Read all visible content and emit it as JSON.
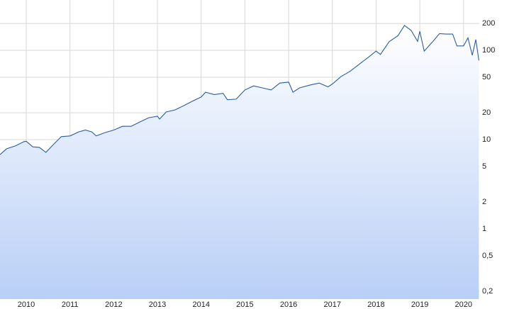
{
  "chart_data": {
    "type": "area",
    "x": [
      2009.4,
      2009.55,
      2009.75,
      2009.95,
      2010.0,
      2010.15,
      2010.3,
      2010.45,
      2010.6,
      2010.8,
      2011.0,
      2011.2,
      2011.35,
      2011.5,
      2011.6,
      2011.8,
      2012.0,
      2012.2,
      2012.4,
      2012.6,
      2012.8,
      2013.0,
      2013.05,
      2013.2,
      2013.4,
      2013.6,
      2013.8,
      2014.0,
      2014.1,
      2014.3,
      2014.5,
      2014.6,
      2014.8,
      2015.0,
      2015.2,
      2015.4,
      2015.6,
      2015.8,
      2016.0,
      2016.1,
      2016.25,
      2016.5,
      2016.7,
      2016.9,
      2017.0,
      2017.2,
      2017.4,
      2017.6,
      2017.8,
      2018.0,
      2018.1,
      2018.3,
      2018.5,
      2018.65,
      2018.8,
      2018.95,
      2019.0,
      2019.1,
      2019.3,
      2019.45,
      2019.6,
      2019.75,
      2019.85,
      2020.0,
      2020.1,
      2020.2,
      2020.28,
      2020.35
    ],
    "series": [
      {
        "color": "#2a5d9f",
        "fill": "#b9cff6",
        "values": [
          6.8,
          7.9,
          8.5,
          9.5,
          9.6,
          8.3,
          8.2,
          7.2,
          8.6,
          10.8,
          11.0,
          12.2,
          12.8,
          12.2,
          11.0,
          12.0,
          12.8,
          14.1,
          14.1,
          15.8,
          17.6,
          18.3,
          17.0,
          20.4,
          21.5,
          24,
          27,
          30,
          34,
          32,
          33,
          28,
          28.4,
          36,
          40,
          38,
          36,
          43,
          44,
          34,
          38,
          41,
          43,
          39,
          42,
          51,
          58,
          69,
          82,
          98,
          90,
          125,
          146,
          190,
          167,
          126,
          163,
          98,
          126,
          154,
          152,
          152,
          112,
          112,
          138,
          88,
          132,
          77
        ]
      }
    ],
    "xlim": [
      2009.4,
      2020.36
    ],
    "xticks": [
      2010,
      2011,
      2012,
      2013,
      2014,
      2015,
      2016,
      2017,
      2018,
      2019,
      2020
    ],
    "ylim": [
      0.164,
      366
    ],
    "yticks": [
      {
        "value": 0.2,
        "label": "0,2"
      },
      {
        "value": 0.5,
        "label": "0,5"
      },
      1,
      2,
      5,
      10,
      20,
      50,
      100,
      200
    ],
    "log_y": true,
    "grid": true
  }
}
